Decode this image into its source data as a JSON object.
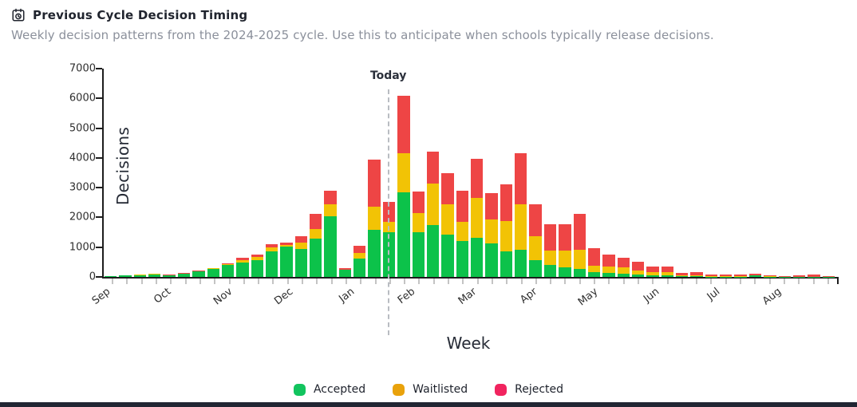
{
  "header": {
    "title": "Previous Cycle Decision Timing",
    "subtitle": "Weekly decision patterns from the 2024-2025 cycle. Use this to anticipate when schools typically release decisions.",
    "icon": "calendar-clock-icon"
  },
  "chart_data": {
    "type": "bar",
    "stacked": true,
    "xlabel": "Week",
    "ylabel": "Decisions",
    "ylim": [
      0,
      7000
    ],
    "yticks": [
      0,
      1000,
      2000,
      3000,
      4000,
      5000,
      6000,
      7000
    ],
    "grid": false,
    "legend_position": "bottom-center",
    "month_labels": [
      "Sep",
      "Oct",
      "Nov",
      "Dec",
      "Jan",
      "Feb",
      "Mar",
      "Apr",
      "May",
      "Jun",
      "Jul",
      "Aug"
    ],
    "annotation": {
      "label": "Today",
      "position_fraction": 0.389
    },
    "series": [
      {
        "name": "Accepted",
        "color": "#0cc24a",
        "values": [
          15,
          50,
          65,
          90,
          55,
          110,
          185,
          270,
          400,
          490,
          560,
          865,
          1010,
          940,
          1290,
          2030,
          240,
          620,
          1590,
          1490,
          2830,
          1490,
          1740,
          1410,
          1210,
          1310,
          1130,
          865,
          910,
          555,
          400,
          330,
          270,
          150,
          135,
          115,
          80,
          55,
          55,
          20,
          25,
          10,
          10,
          5,
          45,
          5,
          5,
          5,
          5,
          5
        ]
      },
      {
        "name": "Waitlisted",
        "color": "#f2c305",
        "values": [
          0,
          5,
          10,
          15,
          10,
          10,
          15,
          25,
          30,
          70,
          105,
          115,
          60,
          220,
          310,
          400,
          5,
          180,
          780,
          360,
          1340,
          650,
          1410,
          1030,
          630,
          1340,
          800,
          1010,
          1520,
          800,
          490,
          560,
          640,
          225,
          225,
          200,
          125,
          100,
          100,
          30,
          35,
          20,
          15,
          10,
          15,
          10,
          5,
          5,
          5,
          5
        ]
      },
      {
        "name": "Rejected",
        "color": "#ee4545",
        "values": [
          0,
          0,
          5,
          5,
          5,
          5,
          10,
          10,
          15,
          90,
          90,
          115,
          90,
          210,
          510,
          470,
          45,
          250,
          1560,
          670,
          1920,
          730,
          1070,
          1040,
          1070,
          1320,
          880,
          1235,
          1740,
          1075,
          870,
          870,
          1210,
          580,
          400,
          340,
          300,
          205,
          205,
          85,
          90,
          60,
          65,
          55,
          50,
          40,
          20,
          50,
          60,
          30
        ]
      }
    ],
    "legend": [
      {
        "label": "Accepted",
        "color": "#12c45e"
      },
      {
        "label": "Waitlisted",
        "color": "#e9a20b"
      },
      {
        "label": "Rejected",
        "color": "#f1245f"
      }
    ]
  }
}
